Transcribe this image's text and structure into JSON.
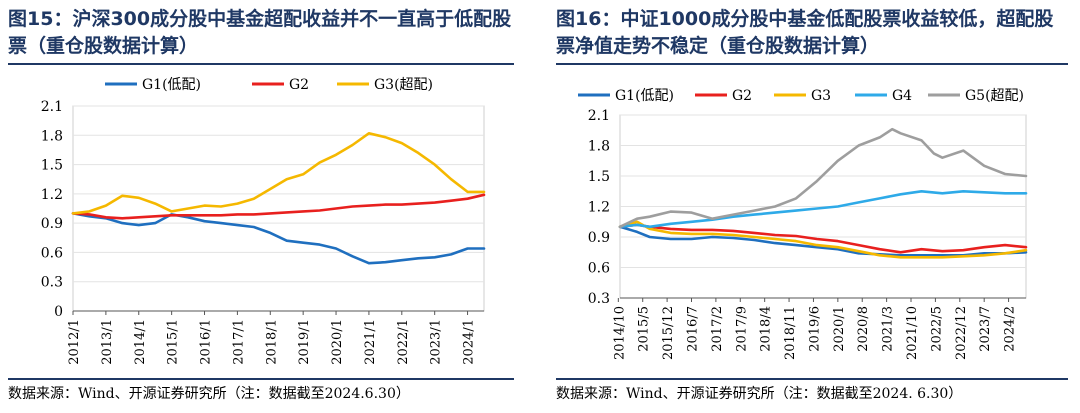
{
  "figures": [
    {
      "title": "图15：沪深300成分股中基金超配收益并不一直高于低配股票（重仓股数据计算）",
      "source": "数据来源：Wind、开源证券研究所（注：数据截至2024.6.30）"
    },
    {
      "title": "图16：中证1000成分股中基金低配股票收益较低，超配股票净值走势不稳定（重仓股数据计算）",
      "source": "数据来源：Wind、开源证券研究所（注：数据截至2024. 6.30）"
    }
  ],
  "chart_data": [
    {
      "type": "line",
      "title": "",
      "xlabel": "",
      "ylabel": "",
      "ylim": [
        0,
        2.1
      ],
      "yticks": [
        "0",
        "0.3",
        "0.6",
        "0.9",
        "1.2",
        "1.5",
        "1.8",
        "2.1"
      ],
      "xticks": [
        "2012/1",
        "2013/1",
        "2014/1",
        "2015/1",
        "2016/1",
        "2017/1",
        "2018/1",
        "2019/1",
        "2020/1",
        "2021/1",
        "2022/1",
        "2023/1",
        "2024/1"
      ],
      "x_domain": [
        2012.0,
        2024.5
      ],
      "grid": true,
      "legend": "top",
      "series": [
        {
          "name": "G1(低配)",
          "color": "#1f6fbf",
          "x": [
            2012.0,
            2012.5,
            2013.0,
            2013.5,
            2014.0,
            2014.5,
            2015.0,
            2015.5,
            2016.0,
            2016.5,
            2017.0,
            2017.5,
            2018.0,
            2018.5,
            2019.0,
            2019.5,
            2020.0,
            2020.5,
            2021.0,
            2021.5,
            2022.0,
            2022.5,
            2023.0,
            2023.5,
            2024.0,
            2024.5
          ],
          "values": [
            1.0,
            0.97,
            0.95,
            0.9,
            0.88,
            0.9,
            0.99,
            0.96,
            0.92,
            0.9,
            0.88,
            0.86,
            0.8,
            0.72,
            0.7,
            0.68,
            0.64,
            0.56,
            0.49,
            0.5,
            0.52,
            0.54,
            0.55,
            0.58,
            0.64,
            0.64
          ]
        },
        {
          "name": "G2",
          "color": "#e8201e",
          "x": [
            2012.0,
            2012.5,
            2013.0,
            2013.5,
            2014.0,
            2014.5,
            2015.0,
            2015.5,
            2016.0,
            2016.5,
            2017.0,
            2017.5,
            2018.0,
            2018.5,
            2019.0,
            2019.5,
            2020.0,
            2020.5,
            2021.0,
            2021.5,
            2022.0,
            2022.5,
            2023.0,
            2023.5,
            2024.0,
            2024.5
          ],
          "values": [
            1.0,
            0.99,
            0.96,
            0.95,
            0.96,
            0.97,
            0.98,
            0.98,
            0.98,
            0.98,
            0.99,
            0.99,
            1.0,
            1.01,
            1.02,
            1.03,
            1.05,
            1.07,
            1.08,
            1.09,
            1.09,
            1.1,
            1.11,
            1.13,
            1.15,
            1.19
          ]
        },
        {
          "name": "G3(超配)",
          "color": "#f5b800",
          "x": [
            2012.0,
            2012.5,
            2013.0,
            2013.5,
            2014.0,
            2014.5,
            2015.0,
            2015.5,
            2016.0,
            2016.5,
            2017.0,
            2017.5,
            2018.0,
            2018.5,
            2019.0,
            2019.5,
            2020.0,
            2020.5,
            2021.0,
            2021.5,
            2022.0,
            2022.5,
            2023.0,
            2023.5,
            2024.0,
            2024.5
          ],
          "values": [
            1.0,
            1.02,
            1.08,
            1.18,
            1.16,
            1.1,
            1.02,
            1.05,
            1.08,
            1.07,
            1.1,
            1.15,
            1.25,
            1.35,
            1.4,
            1.52,
            1.6,
            1.7,
            1.82,
            1.78,
            1.72,
            1.62,
            1.5,
            1.35,
            1.22,
            1.22
          ]
        }
      ]
    },
    {
      "type": "line",
      "title": "",
      "xlabel": "",
      "ylabel": "",
      "ylim": [
        0.3,
        2.1
      ],
      "yticks": [
        "0.3",
        "0.6",
        "0.9",
        "1.2",
        "1.5",
        "1.8",
        "2.1"
      ],
      "xticks": [
        "2014/10",
        "2015/5",
        "2015/12",
        "2016/7",
        "2017/2",
        "2017/9",
        "2018/4",
        "2018/11",
        "2019/6",
        "2020/1",
        "2020/8",
        "2021/3",
        "2021/10",
        "2022/5",
        "2022/12",
        "2023/7",
        "2024/2"
      ],
      "x_domain": [
        2014.79,
        2024.5
      ],
      "grid": true,
      "legend": "top",
      "series": [
        {
          "name": "G1(低配)",
          "color": "#1f6fbf",
          "x": [
            2014.79,
            2015.2,
            2015.5,
            2016.0,
            2016.5,
            2017.0,
            2017.5,
            2018.0,
            2018.5,
            2019.0,
            2019.5,
            2020.0,
            2020.5,
            2021.0,
            2021.5,
            2022.0,
            2022.5,
            2023.0,
            2023.5,
            2024.0,
            2024.5
          ],
          "values": [
            1.0,
            0.95,
            0.9,
            0.88,
            0.88,
            0.9,
            0.89,
            0.87,
            0.84,
            0.82,
            0.8,
            0.78,
            0.74,
            0.73,
            0.72,
            0.72,
            0.72,
            0.72,
            0.74,
            0.74,
            0.75
          ]
        },
        {
          "name": "G2",
          "color": "#e8201e",
          "x": [
            2014.79,
            2015.2,
            2015.5,
            2016.0,
            2016.5,
            2017.0,
            2017.5,
            2018.0,
            2018.5,
            2019.0,
            2019.5,
            2020.0,
            2020.5,
            2021.0,
            2021.5,
            2022.0,
            2022.5,
            2023.0,
            2023.5,
            2024.0,
            2024.5
          ],
          "values": [
            1.0,
            1.02,
            1.0,
            0.98,
            0.97,
            0.97,
            0.96,
            0.94,
            0.92,
            0.91,
            0.88,
            0.86,
            0.82,
            0.78,
            0.75,
            0.78,
            0.76,
            0.77,
            0.8,
            0.82,
            0.8
          ]
        },
        {
          "name": "G3",
          "color": "#f5b800",
          "x": [
            2014.79,
            2015.2,
            2015.5,
            2016.0,
            2016.5,
            2017.0,
            2017.5,
            2018.0,
            2018.5,
            2019.0,
            2019.5,
            2020.0,
            2020.5,
            2021.0,
            2021.5,
            2022.0,
            2022.5,
            2023.0,
            2023.5,
            2024.0,
            2024.5
          ],
          "values": [
            1.0,
            1.05,
            0.98,
            0.94,
            0.93,
            0.93,
            0.92,
            0.9,
            0.88,
            0.86,
            0.82,
            0.8,
            0.76,
            0.72,
            0.7,
            0.7,
            0.7,
            0.71,
            0.72,
            0.74,
            0.77
          ]
        },
        {
          "name": "G4",
          "color": "#2eaae8",
          "x": [
            2014.79,
            2015.2,
            2015.5,
            2016.0,
            2016.5,
            2017.0,
            2017.5,
            2018.0,
            2018.5,
            2019.0,
            2019.5,
            2020.0,
            2020.5,
            2021.0,
            2021.5,
            2022.0,
            2022.5,
            2023.0,
            2023.5,
            2024.0,
            2024.5
          ],
          "values": [
            1.0,
            1.02,
            1.0,
            1.03,
            1.05,
            1.07,
            1.1,
            1.12,
            1.14,
            1.16,
            1.18,
            1.2,
            1.24,
            1.28,
            1.32,
            1.35,
            1.33,
            1.35,
            1.34,
            1.33,
            1.33
          ]
        },
        {
          "name": "G5(超配)",
          "color": "#9e9e9e",
          "x": [
            2014.79,
            2015.2,
            2015.5,
            2016.0,
            2016.5,
            2017.0,
            2017.5,
            2018.0,
            2018.5,
            2019.0,
            2019.5,
            2020.0,
            2020.5,
            2021.0,
            2021.3,
            2021.5,
            2022.0,
            2022.3,
            2022.5,
            2023.0,
            2023.5,
            2024.0,
            2024.5
          ],
          "values": [
            1.0,
            1.08,
            1.1,
            1.15,
            1.14,
            1.08,
            1.12,
            1.16,
            1.2,
            1.28,
            1.45,
            1.65,
            1.8,
            1.88,
            1.96,
            1.92,
            1.85,
            1.72,
            1.68,
            1.75,
            1.6,
            1.52,
            1.5
          ]
        }
      ]
    }
  ]
}
